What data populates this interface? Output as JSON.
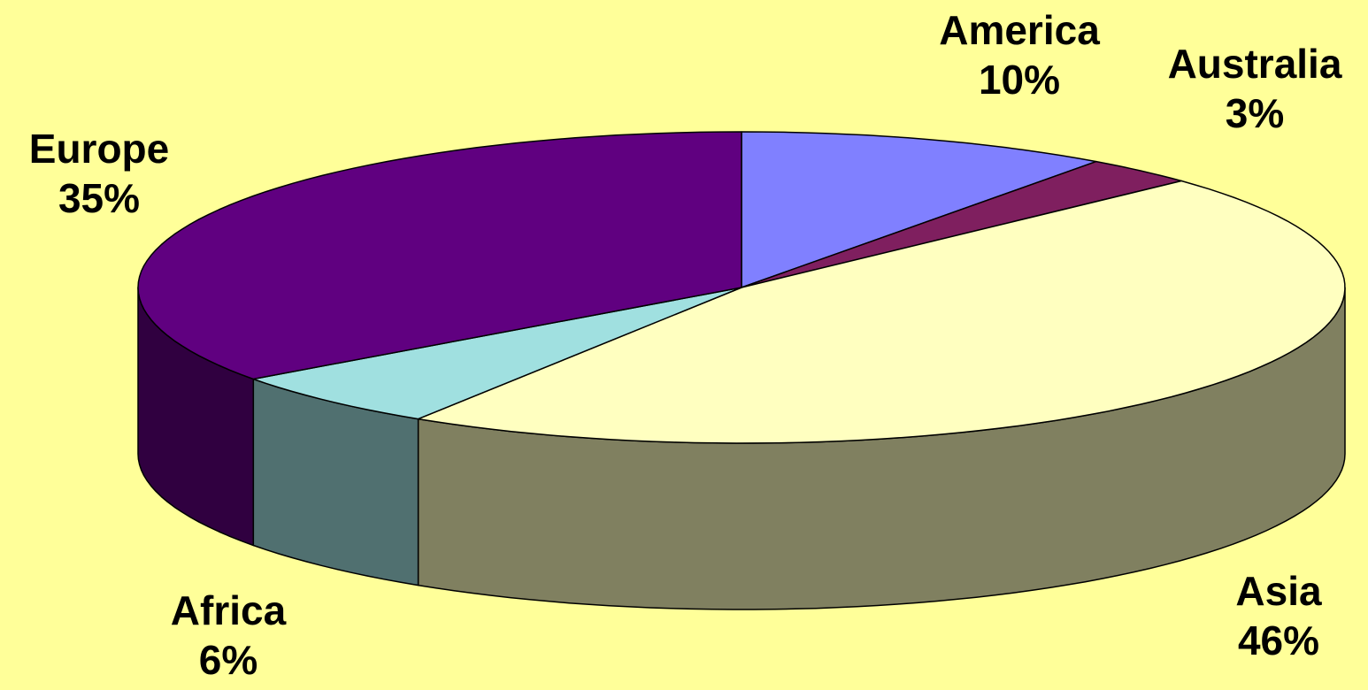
{
  "chart_data": {
    "type": "pie",
    "style": "3d-exploded-none",
    "background": "#ffff99",
    "slices": [
      {
        "label": "America",
        "percent_label": "10%",
        "value": 10,
        "top_color": "#8080ff",
        "side_color": "#4d4d99"
      },
      {
        "label": "Australia",
        "percent_label": "3%",
        "value": 3,
        "top_color": "#7f1f5f",
        "side_color": "#4c1339"
      },
      {
        "label": "Asia",
        "percent_label": "46%",
        "value": 46,
        "top_color": "#ffffc0",
        "side_color": "#808060"
      },
      {
        "label": "Africa",
        "percent_label": "6%",
        "value": 6,
        "top_color": "#a0e0e0",
        "side_color": "#507070"
      },
      {
        "label": "Europe",
        "percent_label": "35%",
        "value": 35,
        "top_color": "#600080",
        "side_color": "#300040"
      }
    ]
  }
}
